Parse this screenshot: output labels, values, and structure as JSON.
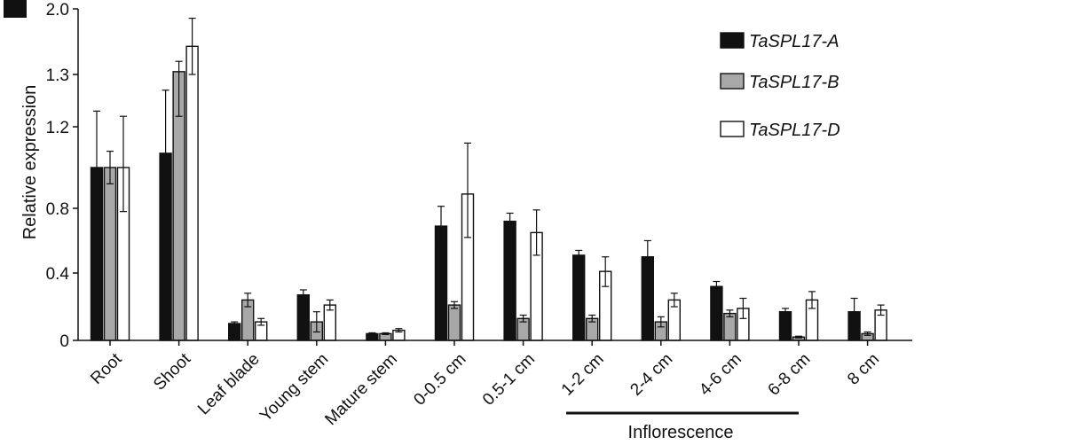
{
  "chart_data": {
    "type": "bar",
    "panel_label": "",
    "ylabel": "Relative expression",
    "xlabel": "",
    "y_ticks": [
      "0",
      "0.4",
      "0.8",
      "1.2",
      "1.3",
      "2.0"
    ],
    "categories": [
      "Root",
      "Shoot",
      "Leaf blade",
      "Young stem",
      "Mature stem",
      "0-0.5 cm",
      "0.5-1 cm",
      "1-2 cm",
      "2-4 cm",
      "4-6 cm",
      "6-8 cm",
      "8 cm"
    ],
    "group_label": "Inflorescence",
    "group_range": [
      "1-2 cm",
      "6-8 cm"
    ],
    "legend_position": "top-right",
    "series": [
      {
        "name": "TaSPL17-A",
        "color": "#111111",
        "values": [
          1.0,
          1.07,
          0.1,
          0.27,
          0.04,
          0.69,
          0.72,
          0.51,
          0.5,
          0.32,
          0.17,
          0.17
        ],
        "errors": [
          0.23,
          0.2,
          0.01,
          0.03,
          0.005,
          0.12,
          0.05,
          0.03,
          0.1,
          0.03,
          0.02,
          0.08
        ]
      },
      {
        "name": "TaSPL17-B",
        "color": "#a8a8a8",
        "values": [
          1.0,
          1.33,
          0.24,
          0.11,
          0.04,
          0.21,
          0.13,
          0.13,
          0.11,
          0.16,
          0.02,
          0.04
        ],
        "errors": [
          0.08,
          0.11,
          0.04,
          0.06,
          0.005,
          0.02,
          0.02,
          0.02,
          0.03,
          0.02,
          0.005,
          0.01
        ]
      },
      {
        "name": "TaSPL17-D",
        "color": "#ffffff",
        "values": [
          1.0,
          1.6,
          0.11,
          0.21,
          0.06,
          0.87,
          0.65,
          0.41,
          0.24,
          0.19,
          0.24,
          0.18
        ],
        "errors": [
          0.22,
          0.3,
          0.02,
          0.03,
          0.01,
          0.25,
          0.14,
          0.09,
          0.04,
          0.06,
          0.05,
          0.03
        ]
      }
    ]
  }
}
